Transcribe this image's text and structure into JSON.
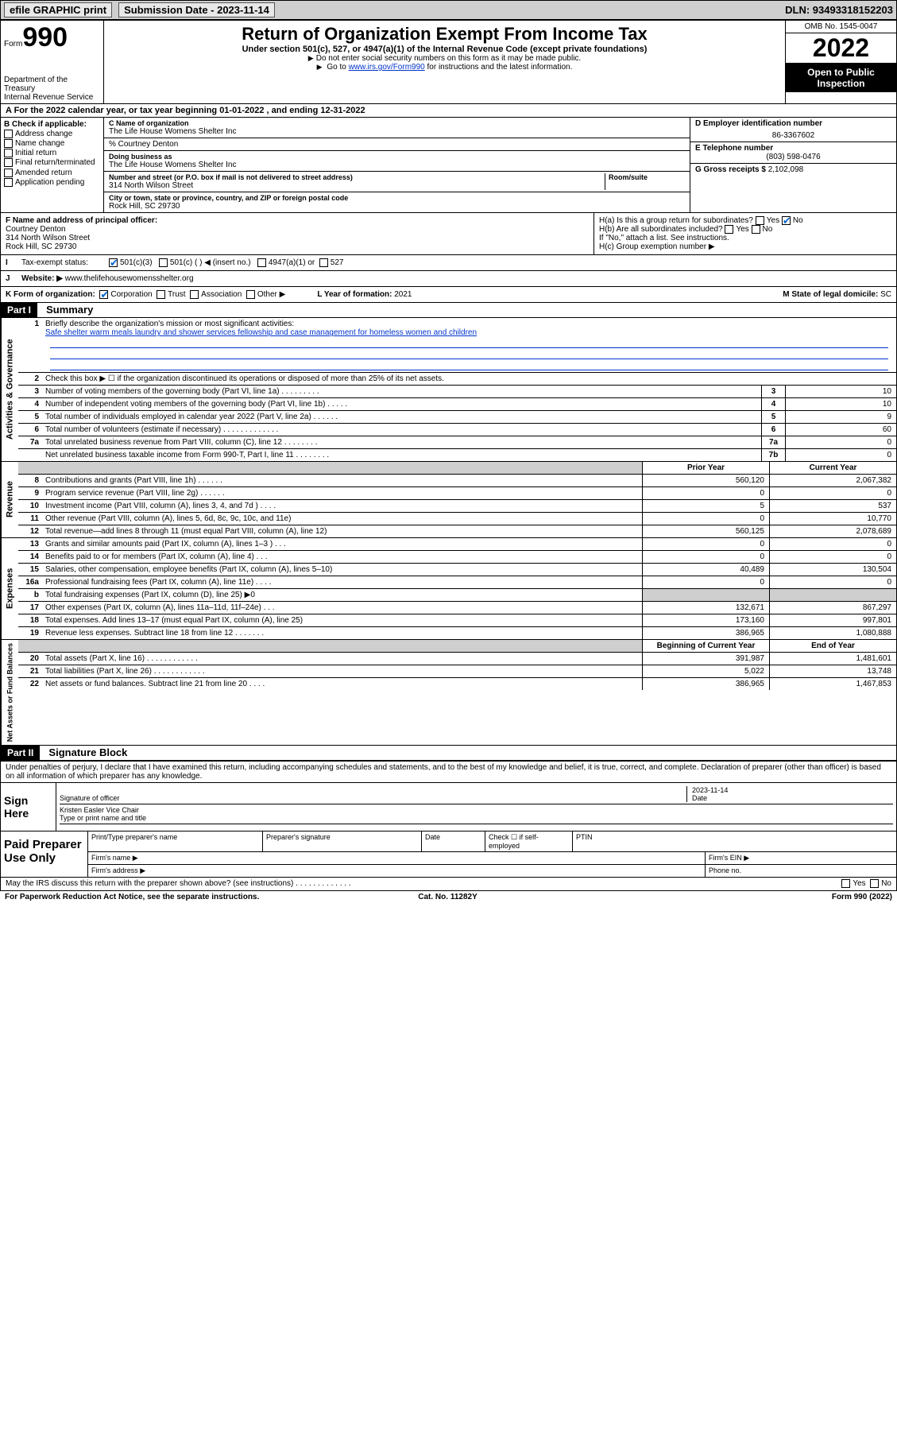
{
  "topbar": {
    "efile": "efile GRAPHIC print",
    "submission_label": "Submission Date - 2023-11-14",
    "dln": "DLN: 93493318152203"
  },
  "header": {
    "form_label": "Form",
    "form_num": "990",
    "dept": "Department of the Treasury",
    "irs": "Internal Revenue Service",
    "title": "Return of Organization Exempt From Income Tax",
    "subtitle": "Under section 501(c), 527, or 4947(a)(1) of the Internal Revenue Code (except private foundations)",
    "note1": "Do not enter social security numbers on this form as it may be made public.",
    "note2_pre": "Go to ",
    "note2_link": "www.irs.gov/Form990",
    "note2_post": " for instructions and the latest information.",
    "omb": "OMB No. 1545-0047",
    "year": "2022",
    "open": "Open to Public Inspection"
  },
  "line_a": "A For the 2022 calendar year, or tax year beginning 01-01-2022    , and ending 12-31-2022",
  "col_b": {
    "title": "B Check if applicable:",
    "items": [
      "Address change",
      "Name change",
      "Initial return",
      "Final return/terminated",
      "Amended return",
      "Application pending"
    ]
  },
  "col_c": {
    "name_label": "C Name of organization",
    "name": "The Life House Womens Shelter Inc",
    "care_of": "% Courtney Denton",
    "dba_label": "Doing business as",
    "dba": "The Life House Womens Shelter Inc",
    "addr_label": "Number and street (or P.O. box if mail is not delivered to street address)",
    "room_label": "Room/suite",
    "addr": "314 North Wilson Street",
    "city_label": "City or town, state or province, country, and ZIP or foreign postal code",
    "city": "Rock Hill, SC  29730"
  },
  "col_d": {
    "ein_label": "D Employer identification number",
    "ein": "86-3367602",
    "phone_label": "E Telephone number",
    "phone": "(803) 598-0476",
    "gross_label": "G Gross receipts $",
    "gross": "2,102,098"
  },
  "row_f": {
    "label": "F Name and address of principal officer:",
    "name": "Courtney Denton",
    "addr1": "314 North Wilson Street",
    "addr2": "Rock Hill, SC  29730"
  },
  "row_h": {
    "ha": "H(a)  Is this a group return for subordinates?",
    "hb": "H(b)  Are all subordinates included?",
    "hb_note": "If \"No,\" attach a list. See instructions.",
    "hc": "H(c)  Group exemption number ▶",
    "yes": "Yes",
    "no": "No"
  },
  "row_i": {
    "label": "Tax-exempt status:",
    "opts": [
      "501(c)(3)",
      "501(c) (  ) ◀ (insert no.)",
      "4947(a)(1) or",
      "527"
    ]
  },
  "row_j": {
    "label": "Website: ▶",
    "val": "www.thelifehousewomensshelter.org"
  },
  "row_k": {
    "label": "K Form of organization:",
    "opts": [
      "Corporation",
      "Trust",
      "Association",
      "Other ▶"
    ],
    "l_label": "L Year of formation:",
    "l_val": "2021",
    "m_label": "M State of legal domicile:",
    "m_val": "SC"
  },
  "part1": {
    "header": "Part I",
    "title": "Summary",
    "sections": [
      {
        "label": "Activities & Governance",
        "mission_label": "Briefly describe the organization's mission or most significant activities:",
        "mission": "Safe shelter warm meals laundry and shower services fellowship and case management for homeless women and children",
        "line2": "Check this box ▶ ☐  if the organization discontinued its operations or disposed of more than 25% of its net assets.",
        "rows": [
          {
            "n": "3",
            "t": "Number of voting members of the governing body (Part VI, line 1a)  .   .   .   .   .   .   .   .   .",
            "b": "3",
            "v": "10"
          },
          {
            "n": "4",
            "t": "Number of independent voting members of the governing body (Part VI, line 1b)   .   .   .   .   .",
            "b": "4",
            "v": "10"
          },
          {
            "n": "5",
            "t": "Total number of individuals employed in calendar year 2022 (Part V, line 2a)   .   .   .   .   .   .",
            "b": "5",
            "v": "9"
          },
          {
            "n": "6",
            "t": "Total number of volunteers (estimate if necessary)   .   .   .   .   .   .   .   .   .   .   .   .   .",
            "b": "6",
            "v": "60"
          },
          {
            "n": "7a",
            "t": "Total unrelated business revenue from Part VIII, column (C), line 12   .   .   .   .   .   .   .   .",
            "b": "7a",
            "v": "0"
          },
          {
            "n": "",
            "t": "Net unrelated business taxable income from Form 990-T, Part I, line 11  .   .   .   .   .   .   .   .",
            "b": "7b",
            "v": "0"
          }
        ]
      }
    ],
    "revenue": {
      "label": "Revenue",
      "prior_hdr": "Prior Year",
      "current_hdr": "Current Year",
      "rows": [
        {
          "n": "8",
          "t": "Contributions and grants (Part VIII, line 1h)   .   .   .   .   .   .",
          "p": "560,120",
          "c": "2,067,382"
        },
        {
          "n": "9",
          "t": "Program service revenue (Part VIII, line 2g)   .   .   .   .   .   .",
          "p": "0",
          "c": "0"
        },
        {
          "n": "10",
          "t": "Investment income (Part VIII, column (A), lines 3, 4, and 7d )   .   .   .   .",
          "p": "5",
          "c": "537"
        },
        {
          "n": "11",
          "t": "Other revenue (Part VIII, column (A), lines 5, 6d, 8c, 9c, 10c, and 11e)",
          "p": "0",
          "c": "10,770"
        },
        {
          "n": "12",
          "t": "Total revenue—add lines 8 through 11 (must equal Part VIII, column (A), line 12)",
          "p": "560,125",
          "c": "2,078,689"
        }
      ]
    },
    "expenses": {
      "label": "Expenses",
      "rows": [
        {
          "n": "13",
          "t": "Grants and similar amounts paid (Part IX, column (A), lines 1–3 )  .   .   .",
          "p": "0",
          "c": "0"
        },
        {
          "n": "14",
          "t": "Benefits paid to or for members (Part IX, column (A), line 4)   .   .   .",
          "p": "0",
          "c": "0"
        },
        {
          "n": "15",
          "t": "Salaries, other compensation, employee benefits (Part IX, column (A), lines 5–10)",
          "p": "40,489",
          "c": "130,504"
        },
        {
          "n": "16a",
          "t": "Professional fundraising fees (Part IX, column (A), line 11e)   .   .   .   .",
          "p": "0",
          "c": "0"
        },
        {
          "n": "b",
          "t": "Total fundraising expenses (Part IX, column (D), line 25) ▶0",
          "p": "",
          "c": "",
          "gray": true
        },
        {
          "n": "17",
          "t": "Other expenses (Part IX, column (A), lines 11a–11d, 11f–24e)   .   .   .",
          "p": "132,671",
          "c": "867,297"
        },
        {
          "n": "18",
          "t": "Total expenses. Add lines 13–17 (must equal Part IX, column (A), line 25)",
          "p": "173,160",
          "c": "997,801"
        },
        {
          "n": "19",
          "t": "Revenue less expenses. Subtract line 18 from line 12   .   .   .   .   .   .   .",
          "p": "386,965",
          "c": "1,080,888"
        }
      ]
    },
    "netassets": {
      "label": "Net Assets or Fund Balances",
      "begin_hdr": "Beginning of Current Year",
      "end_hdr": "End of Year",
      "rows": [
        {
          "n": "20",
          "t": "Total assets (Part X, line 16)   .   .   .   .   .   .   .   .   .   .   .   .",
          "p": "391,987",
          "c": "1,481,601"
        },
        {
          "n": "21",
          "t": "Total liabilities (Part X, line 26)   .   .   .   .   .   .   .   .   .   .   .   .",
          "p": "5,022",
          "c": "13,748"
        },
        {
          "n": "22",
          "t": "Net assets or fund balances. Subtract line 21 from line 20   .   .   .   .",
          "p": "386,965",
          "c": "1,467,853"
        }
      ]
    }
  },
  "part2": {
    "header": "Part II",
    "title": "Signature Block",
    "intro": "Under penalties of perjury, I declare that I have examined this return, including accompanying schedules and statements, and to the best of my knowledge and belief, it is true, correct, and complete. Declaration of preparer (other than officer) is based on all information of which preparer has any knowledge."
  },
  "sign": {
    "label": "Sign Here",
    "sig_label": "Signature of officer",
    "date_label": "Date",
    "date": "2023-11-14",
    "name": "Kristen Easler  Vice Chair",
    "name_label": "Type or print name and title"
  },
  "paid": {
    "label": "Paid Preparer Use Only",
    "r1": [
      "Print/Type preparer's name",
      "Preparer's signature",
      "Date",
      "Check ☐ if self-employed",
      "PTIN"
    ],
    "r2_label": "Firm's name  ▶",
    "r2_ein": "Firm's EIN ▶",
    "r3_label": "Firm's address ▶",
    "r3_phone": "Phone no."
  },
  "bottom": {
    "q": "May the IRS discuss this return with the preparer shown above? (see instructions)   .   .   .   .   .   .   .   .   .   .   .   .   .",
    "yes": "Yes",
    "no": "No"
  },
  "footer": {
    "left": "For Paperwork Reduction Act Notice, see the separate instructions.",
    "mid": "Cat. No. 11282Y",
    "right": "Form 990 (2022)"
  }
}
